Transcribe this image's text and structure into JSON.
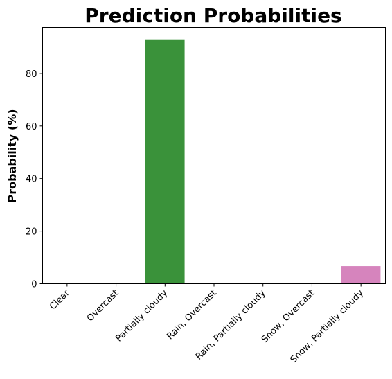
{
  "chart_data": {
    "type": "bar",
    "title": "Prediction Probabilities",
    "xlabel": "",
    "ylabel": "Probability (%)",
    "categories": [
      "Clear",
      "Overcast",
      "Partially cloudy",
      "Rain, Overcast",
      "Rain, Partially cloudy",
      "Snow, Overcast",
      "Snow, Partially cloudy"
    ],
    "values": [
      0.05,
      0.3,
      92.7,
      0.05,
      0.2,
      0.05,
      6.7
    ],
    "colors": [
      "#3274a1",
      "#e1812c",
      "#3a923a",
      "#c03d3e",
      "#9372b2",
      "#845b53",
      "#d684bd"
    ],
    "yticks": [
      0,
      20,
      40,
      60,
      80
    ],
    "ylim": [
      0,
      97.5
    ],
    "grid": false
  }
}
